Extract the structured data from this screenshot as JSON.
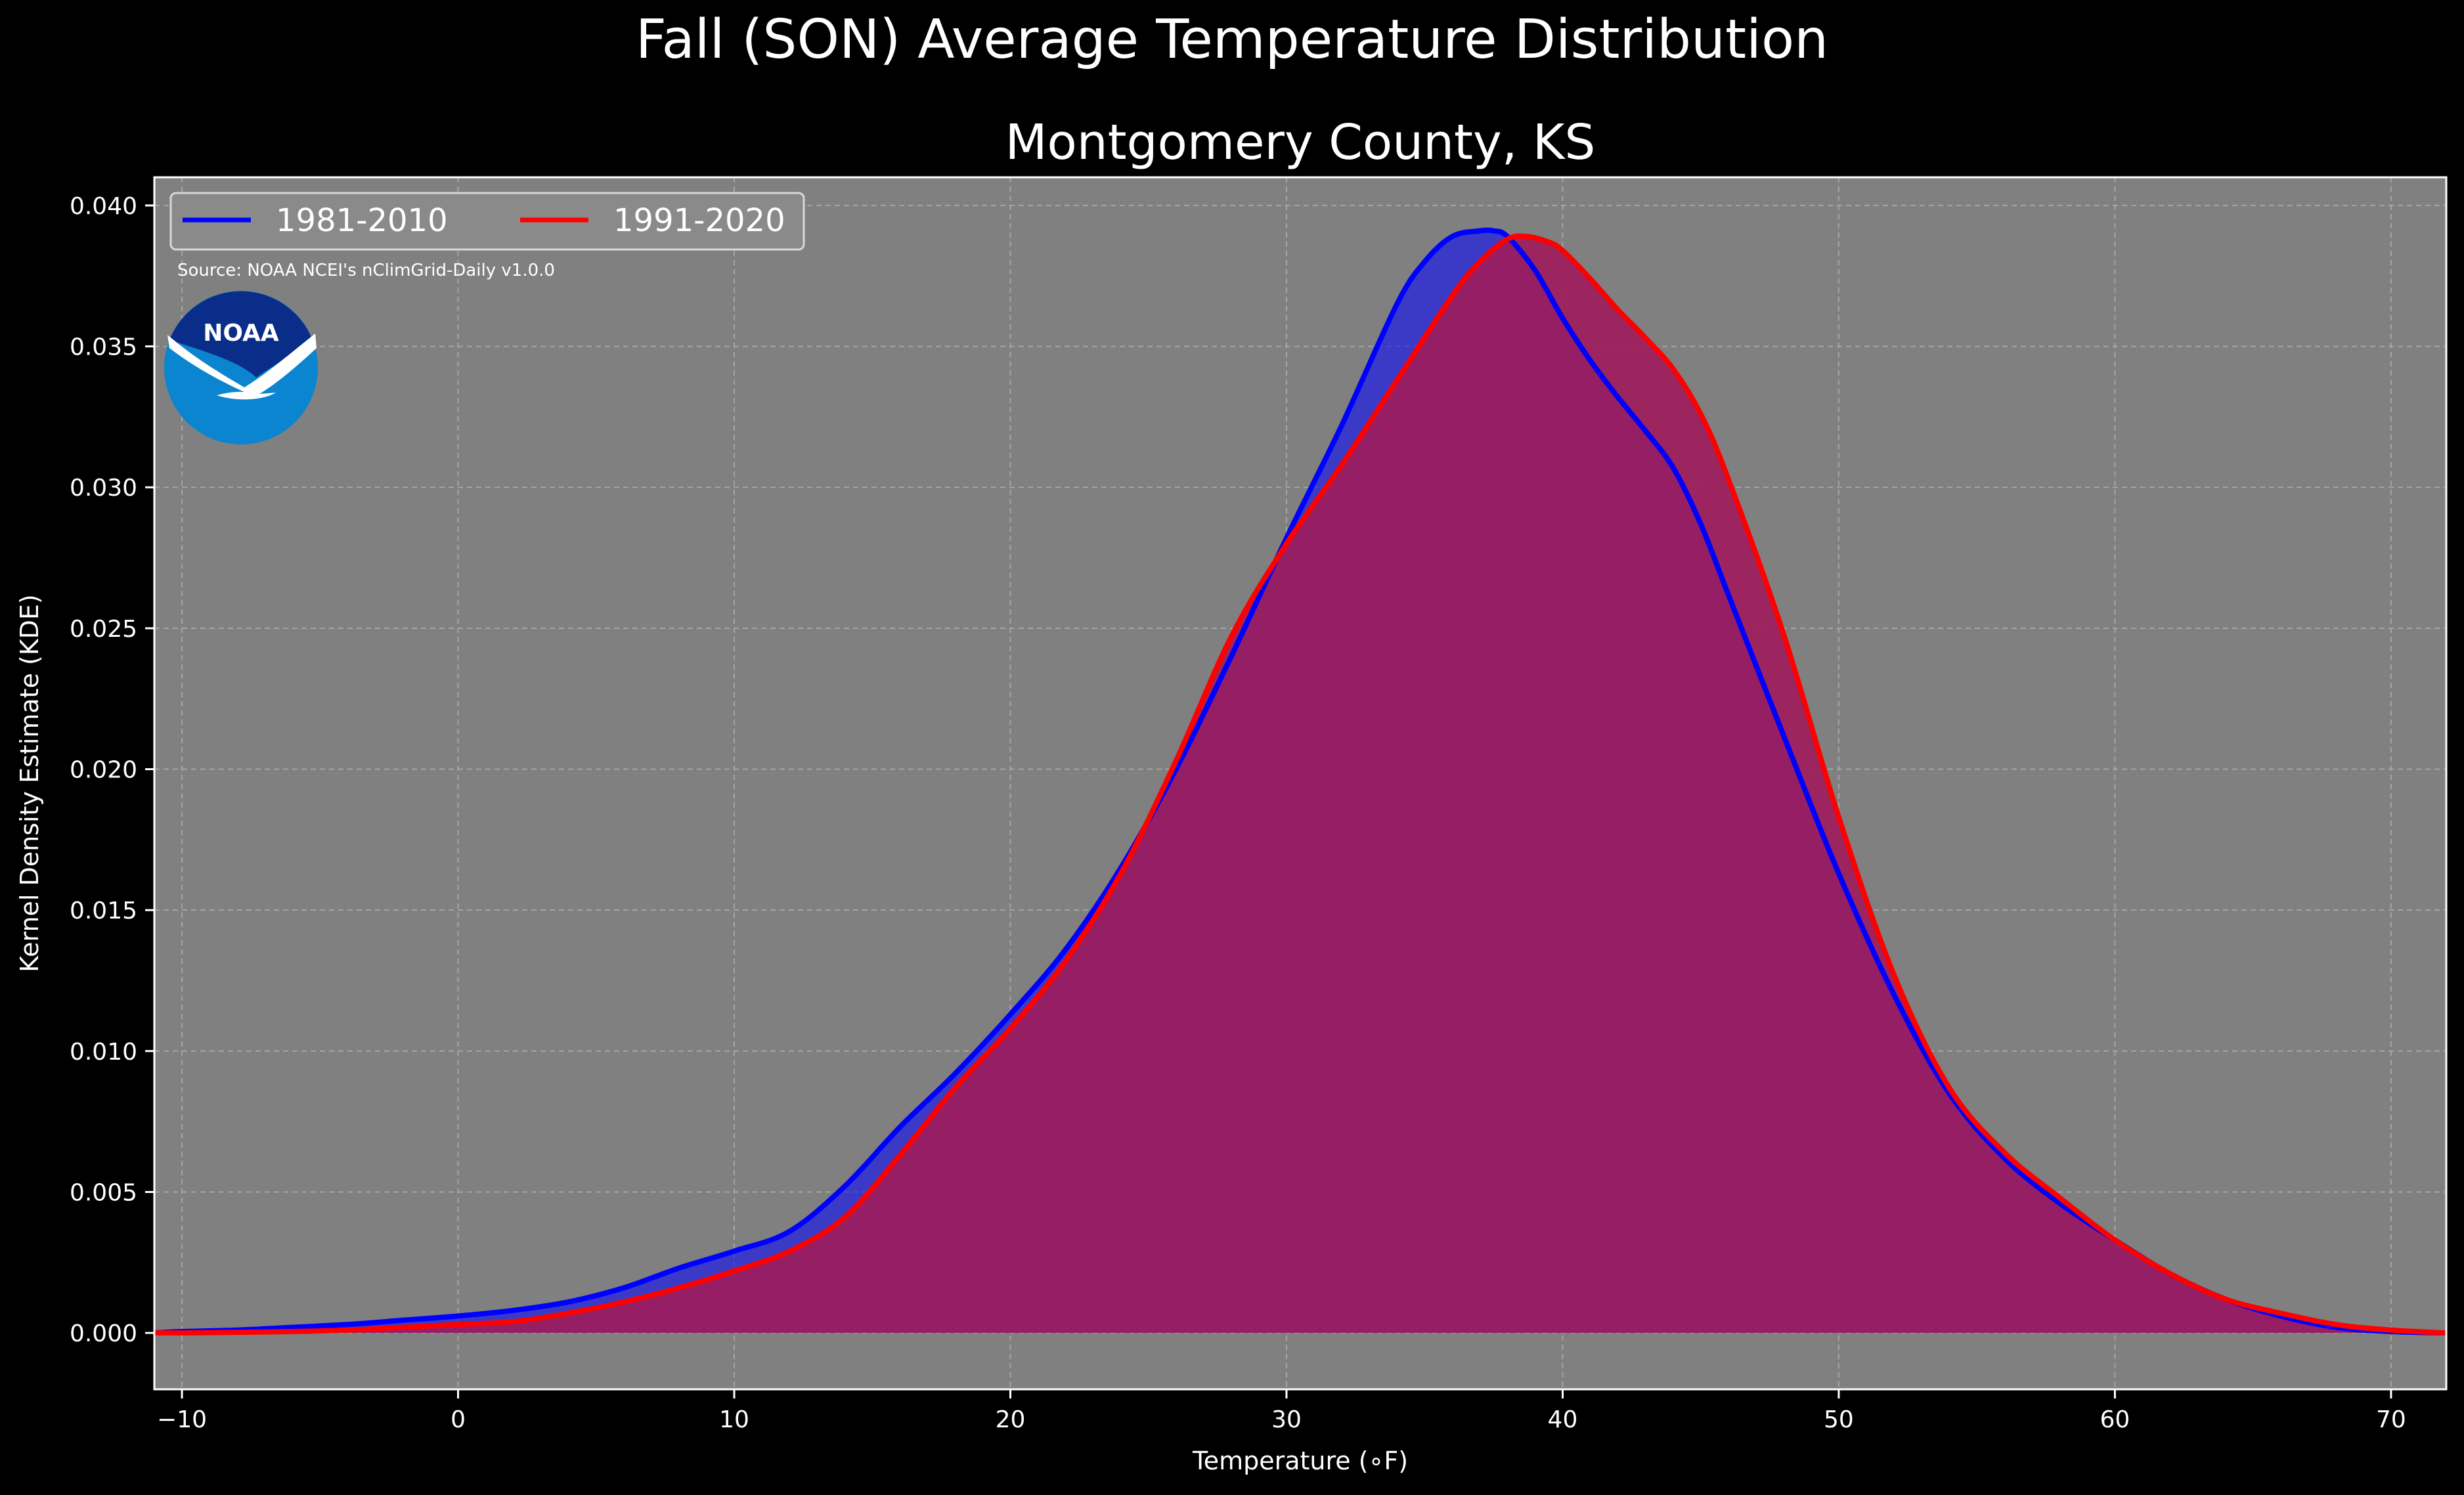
{
  "title": "Fall (SON) Average Temperature Distribution",
  "logo_text": "NOAA",
  "colors": {
    "background": "#000000",
    "plot_background": "#808080",
    "grid": "#b0b0b0",
    "series_1": "#0000ff",
    "series_2": "#ff0000",
    "overlap_fill": "#9e1c5c",
    "logo_dark": "#0a2d8a",
    "logo_light": "#0b85cf"
  },
  "chart_data": {
    "type": "area",
    "title": "Montgomery County, KS",
    "xlabel": "Temperature (∘F)",
    "ylabel": "Kernel Density Estimate (KDE)",
    "xlim": [
      -11,
      72
    ],
    "ylim": [
      -0.002,
      0.041
    ],
    "xticks": [
      -10,
      0,
      10,
      20,
      30,
      40,
      50,
      60,
      70
    ],
    "xtick_labels": [
      "−10",
      "0",
      "10",
      "20",
      "30",
      "40",
      "50",
      "60",
      "70"
    ],
    "yticks": [
      0.0,
      0.005,
      0.01,
      0.015,
      0.02,
      0.025,
      0.03,
      0.035,
      0.04
    ],
    "ytick_labels": [
      "0.000",
      "0.005",
      "0.010",
      "0.015",
      "0.020",
      "0.025",
      "0.030",
      "0.035",
      "0.040"
    ],
    "grid": true,
    "legend": "top-left",
    "annotation": "Source: NOAA NCEI's nClimGrid-Daily v1.0.0",
    "series": [
      {
        "name": "1981-2010",
        "color": "#0000ff",
        "x": [
          -11,
          -10,
          -8,
          -6,
          -4,
          -2,
          0,
          2,
          4,
          6,
          8,
          10,
          12,
          14,
          16,
          18,
          20,
          22,
          24,
          26,
          28,
          30,
          32,
          34,
          35,
          36,
          37,
          37.5,
          38,
          39,
          40,
          41,
          42,
          43,
          44,
          45,
          46,
          48,
          50,
          52,
          54,
          56,
          58,
          60,
          62,
          64,
          66,
          68,
          70,
          72
        ],
        "y": [
          0.0,
          5e-05,
          0.0001,
          0.0002,
          0.0003,
          0.00045,
          0.0006,
          0.0008,
          0.0011,
          0.0016,
          0.0023,
          0.0029,
          0.0036,
          0.0052,
          0.0073,
          0.0092,
          0.0113,
          0.0136,
          0.0165,
          0.02,
          0.024,
          0.0282,
          0.0322,
          0.0365,
          0.038,
          0.0389,
          0.0391,
          0.0391,
          0.0389,
          0.0377,
          0.036,
          0.0345,
          0.0332,
          0.032,
          0.0307,
          0.0287,
          0.0262,
          0.0212,
          0.0163,
          0.012,
          0.0085,
          0.0062,
          0.0046,
          0.0033,
          0.0021,
          0.0012,
          0.0006,
          0.0002,
          5e-05,
          0.0
        ]
      },
      {
        "name": "1991-2020",
        "color": "#ff0000",
        "x": [
          -11,
          -10,
          -8,
          -6,
          -4,
          -2,
          0,
          2,
          4,
          6,
          8,
          10,
          12,
          14,
          16,
          18,
          20,
          22,
          24,
          26,
          28,
          30,
          32,
          34,
          36,
          37,
          38,
          38.7,
          39.5,
          40,
          41,
          42,
          43,
          44,
          45,
          46,
          48,
          50,
          52,
          54,
          56,
          58,
          60,
          62,
          64,
          66,
          68,
          70,
          72
        ],
        "y": [
          0.0,
          0.0,
          2e-05,
          5e-05,
          0.0001,
          0.0002,
          0.0003,
          0.0004,
          0.0007,
          0.0011,
          0.0016,
          0.0022,
          0.0029,
          0.0041,
          0.0063,
          0.0087,
          0.0108,
          0.0132,
          0.0163,
          0.0203,
          0.0247,
          0.028,
          0.0308,
          0.0338,
          0.0368,
          0.038,
          0.0388,
          0.0389,
          0.0387,
          0.0384,
          0.0374,
          0.0363,
          0.0353,
          0.0342,
          0.0326,
          0.0303,
          0.0248,
          0.0183,
          0.0127,
          0.0087,
          0.0064,
          0.0048,
          0.0033,
          0.0021,
          0.0012,
          0.0007,
          0.0003,
          0.0001,
          0.0
        ]
      }
    ]
  }
}
